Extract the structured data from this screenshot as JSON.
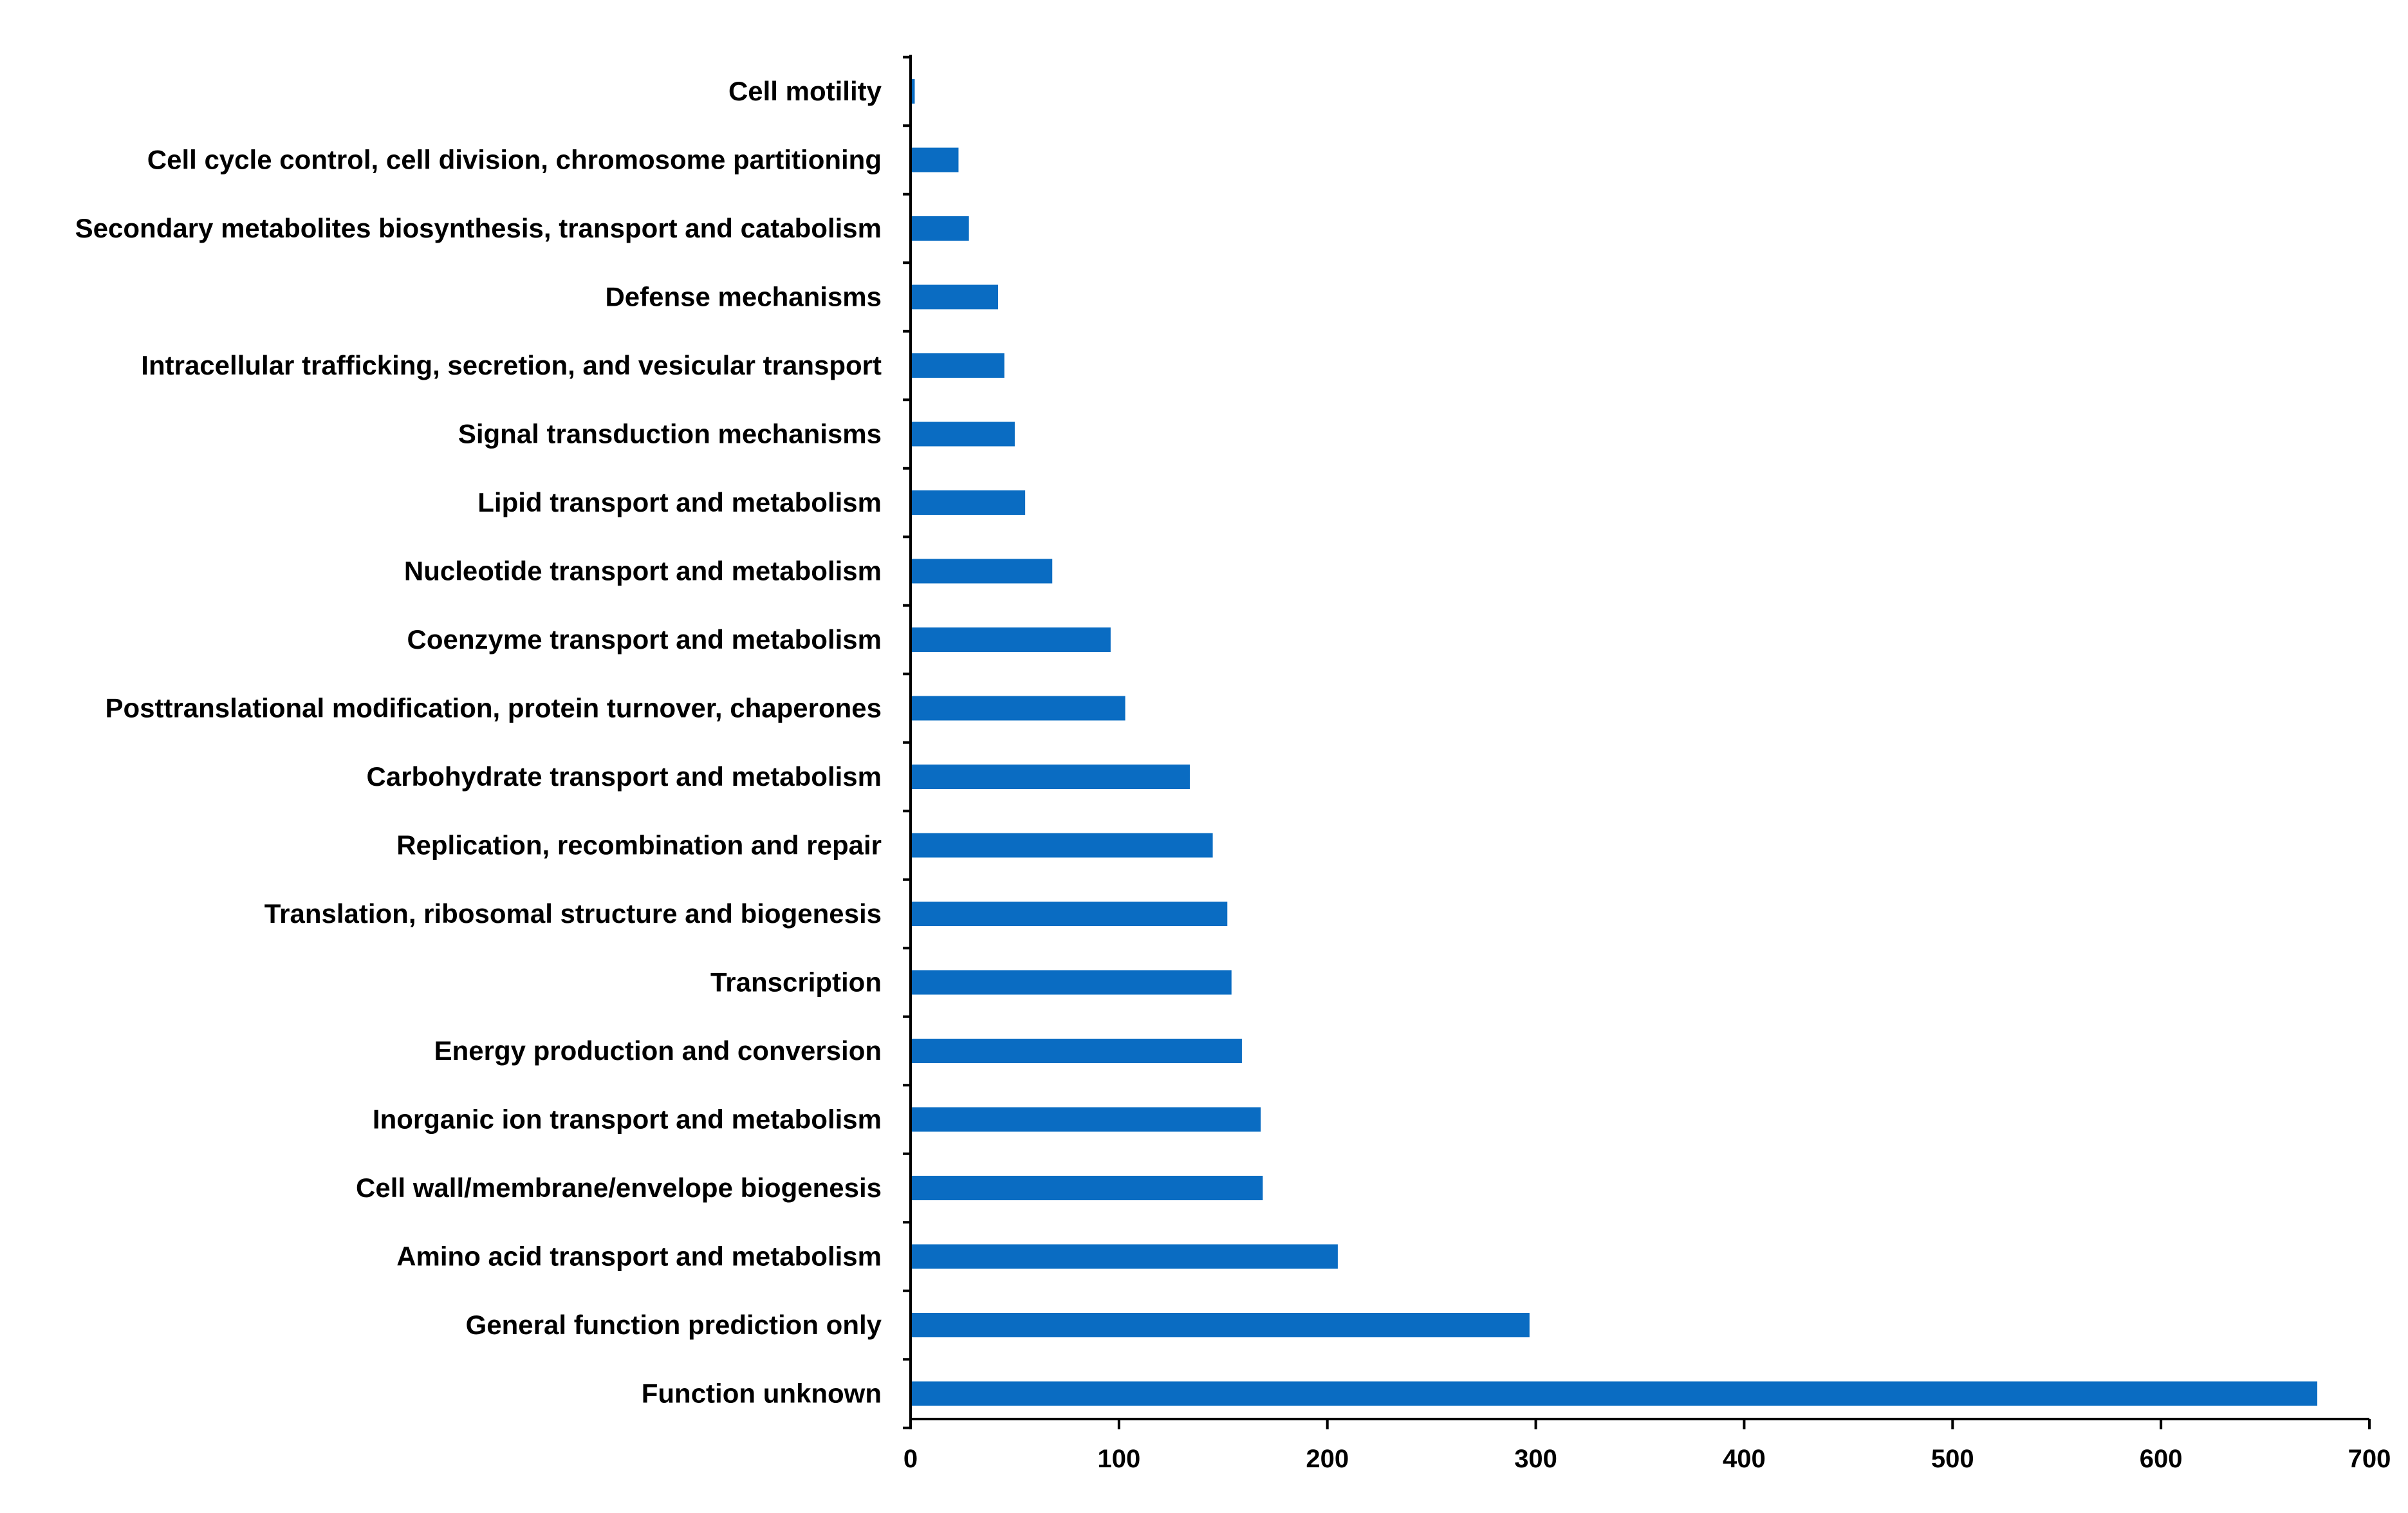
{
  "chart_data": {
    "type": "bar",
    "orientation": "horizontal",
    "categories": [
      "Cell motility",
      "Cell cycle control, cell division, chromosome partitioning",
      "Secondary metabolites biosynthesis, transport and catabolism",
      "Defense mechanisms",
      "Intracellular trafficking, secretion, and vesicular transport",
      "Signal transduction mechanisms",
      "Lipid transport and metabolism",
      "Nucleotide transport and metabolism",
      "Coenzyme transport and metabolism",
      "Posttranslational modification, protein turnover, chaperones",
      "Carbohydrate transport and metabolism",
      "Replication, recombination and repair",
      "Translation, ribosomal structure and biogenesis",
      "Transcription",
      "Energy production and conversion",
      "Inorganic ion transport and metabolism",
      "Cell wall/membrane/envelope biogenesis",
      "Amino acid transport and metabolism",
      "General function prediction only",
      "Function unknown"
    ],
    "values": [
      2,
      23,
      28,
      42,
      45,
      50,
      55,
      68,
      96,
      103,
      134,
      145,
      152,
      154,
      159,
      168,
      169,
      205,
      297,
      675
    ],
    "xlim": [
      0,
      700
    ],
    "xticks": [
      "0",
      "100",
      "200",
      "300",
      "400",
      "500",
      "600",
      "700"
    ],
    "title": "",
    "xlabel": "",
    "ylabel": "",
    "grid": false,
    "legend": "none",
    "bar_color": "#0a6cc2",
    "axis_color": "#000000"
  }
}
